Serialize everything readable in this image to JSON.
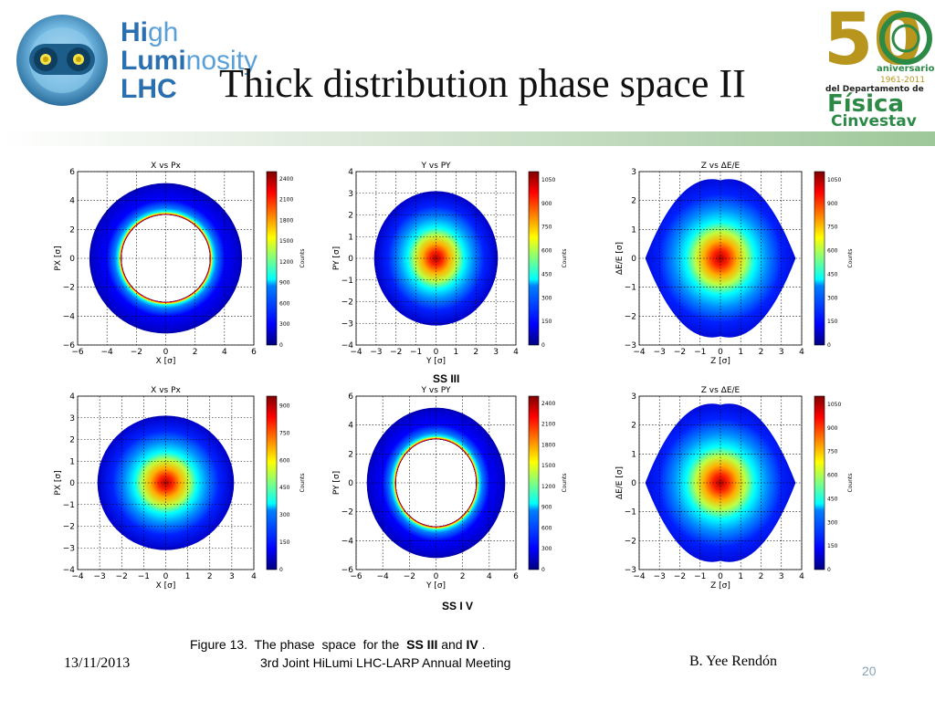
{
  "header": {
    "title": "Thick distribution phase space II",
    "logo_left": {
      "line1_bold": "Hi",
      "line1_rest": "gh",
      "line2_bold": "Lumi",
      "line2_rest": "nosity",
      "line3": "LHC"
    },
    "logo_right": {
      "number": "50",
      "line1": "aniversario",
      "line2": "1961-2011",
      "line3": "del Departamento de",
      "line4": "Física",
      "line5": "Cinvestav"
    }
  },
  "labels": {
    "ss3": "SS III",
    "ss4": "SS I V"
  },
  "caption": {
    "pre": "Figure 13.  The phase  space  for the  ",
    "b1": "SS III",
    "mid": " and ",
    "b2": "IV",
    "post": " ."
  },
  "footer": {
    "date": "13/11/2013",
    "meeting": "3rd Joint HiLumi LHC-LARP Annual Meeting",
    "author": "B. Yee Rendón",
    "page": "20"
  },
  "chart_data": [
    {
      "type": "heatmap",
      "title": "X vs Px",
      "xlabel": "X [σ]",
      "ylabel": "PX [σ]",
      "xlim": [
        -6,
        6
      ],
      "ylim": [
        -6,
        6
      ],
      "xticks": [
        "−6",
        "−4",
        "−2",
        "0",
        "2",
        "4",
        "6"
      ],
      "yticks": [
        "6",
        "4",
        "2",
        "0",
        "−2",
        "−4",
        "−6"
      ],
      "colorbar_label": "Counts",
      "colorbar_ticks": [
        "2400",
        "2100",
        "1800",
        "1500",
        "1200",
        "900",
        "600",
        "300",
        "0"
      ],
      "distribution": "hollow ring",
      "inner_radius": 3,
      "outer_radius": 5.2,
      "peak_radius": 3
    },
    {
      "type": "heatmap",
      "title": "Y vs PY",
      "xlabel": "Y [σ]",
      "ylabel": "PY [σ]",
      "xlim": [
        -4,
        4
      ],
      "ylim": [
        -4,
        4
      ],
      "xticks": [
        "−4",
        "−3",
        "−2",
        "−1",
        "0",
        "1",
        "2",
        "3",
        "4"
      ],
      "yticks": [
        "4",
        "3",
        "2",
        "1",
        "0",
        "−1",
        "−2",
        "−3",
        "−4"
      ],
      "colorbar_label": "Counts",
      "colorbar_ticks": [
        "1050",
        "900",
        "750",
        "600",
        "450",
        "300",
        "150",
        "0"
      ],
      "distribution": "filled disk",
      "outer_radius": 3.1,
      "peak": [
        0,
        0
      ]
    },
    {
      "type": "heatmap",
      "title": "Z vs ΔE/E",
      "xlabel": "Z [σ]",
      "ylabel": "ΔE/E [σ]",
      "xlim": [
        -4,
        4
      ],
      "ylim": [
        -3,
        3
      ],
      "xticks": [
        "−4",
        "−3",
        "−2",
        "−1",
        "0",
        "1",
        "2",
        "3",
        "4"
      ],
      "yticks": [
        "3",
        "2",
        "1",
        "0",
        "−1",
        "−2",
        "−3"
      ],
      "colorbar_label": "Counts",
      "colorbar_ticks": [
        "1050",
        "900",
        "750",
        "600",
        "450",
        "300",
        "150",
        "0"
      ],
      "distribution": "lens shape",
      "outer_radius": 3.7,
      "peak": [
        0,
        0
      ]
    },
    {
      "type": "heatmap",
      "title": "X vs Px",
      "xlabel": "X [σ]",
      "ylabel": "PX [σ]",
      "xlim": [
        -4,
        4
      ],
      "ylim": [
        -4,
        4
      ],
      "xticks": [
        "−4",
        "−3",
        "−2",
        "−1",
        "0",
        "1",
        "2",
        "3",
        "4"
      ],
      "yticks": [
        "4",
        "3",
        "2",
        "1",
        "0",
        "−1",
        "−2",
        "−3",
        "−4"
      ],
      "colorbar_label": "Counts",
      "colorbar_ticks": [
        "900",
        "750",
        "600",
        "450",
        "300",
        "150",
        "0"
      ],
      "distribution": "filled disk",
      "outer_radius": 3.1,
      "peak": [
        0,
        0
      ]
    },
    {
      "type": "heatmap",
      "title": "Y vs PY",
      "xlabel": "Y [σ]",
      "ylabel": "PY [σ]",
      "xlim": [
        -6,
        6
      ],
      "ylim": [
        -6,
        6
      ],
      "xticks": [
        "−6",
        "−4",
        "−2",
        "0",
        "2",
        "4",
        "6"
      ],
      "yticks": [
        "6",
        "4",
        "2",
        "0",
        "−2",
        "−4",
        "−6"
      ],
      "colorbar_label": "Counts",
      "colorbar_ticks": [
        "2400",
        "2100",
        "1800",
        "1500",
        "1200",
        "900",
        "600",
        "300",
        "0"
      ],
      "distribution": "hollow ring",
      "inner_radius": 3,
      "outer_radius": 5.2,
      "peak_radius": 3
    },
    {
      "type": "heatmap",
      "title": "Z vs ΔE/E",
      "xlabel": "Z [σ]",
      "ylabel": "ΔE/E [σ]",
      "xlim": [
        -4,
        4
      ],
      "ylim": [
        -3,
        3
      ],
      "xticks": [
        "−4",
        "−3",
        "−2",
        "−1",
        "0",
        "1",
        "2",
        "3",
        "4"
      ],
      "yticks": [
        "3",
        "2",
        "1",
        "0",
        "−1",
        "−2",
        "−3"
      ],
      "colorbar_label": "Counts",
      "colorbar_ticks": [
        "1050",
        "900",
        "750",
        "600",
        "450",
        "300",
        "150",
        "0"
      ],
      "distribution": "lens shape",
      "outer_radius": 3.7,
      "peak": [
        0,
        0
      ]
    }
  ]
}
